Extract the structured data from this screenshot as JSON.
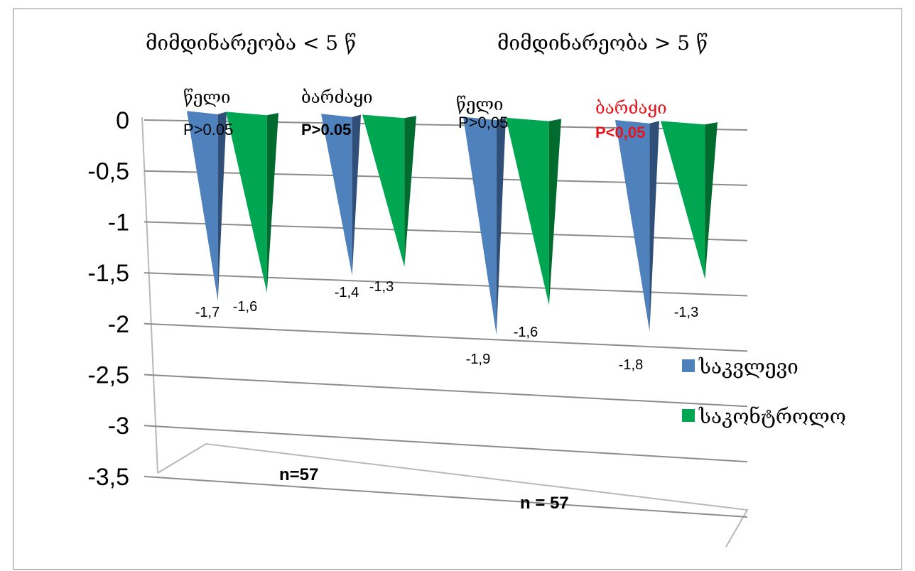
{
  "chart_data": {
    "type": "bar",
    "style": "3d-cone",
    "categories": [
      "წელი",
      "ბარძაყი",
      "წელი",
      "ბარძაყი"
    ],
    "groups": [
      "მიმდინარეობა < 5 წ",
      "მიმდინარეობა > 5 წ"
    ],
    "series": [
      {
        "name": "საკვლევი",
        "color": "#4f81bd",
        "values": [
          -1.7,
          -1.4,
          -1.9,
          -1.8
        ],
        "labels": [
          "-1,7",
          "-1,4",
          "-1,9",
          "-1,8"
        ]
      },
      {
        "name": "საკონტროლო",
        "color": "#00a651",
        "values": [
          -1.6,
          -1.3,
          -1.6,
          -1.3
        ],
        "labels": [
          "-1,6",
          "-1,3",
          "-1,6",
          "-1,3"
        ]
      }
    ],
    "p_values": [
      {
        "text": "P>0.05",
        "bold": false,
        "red": false
      },
      {
        "text": "P>0.05",
        "bold": true,
        "red": false
      },
      {
        "text": "P>0,05",
        "bold": false,
        "red": false
      },
      {
        "text": "P<0,05",
        "bold": true,
        "red": true
      }
    ],
    "category_colors": [
      "#000000",
      "#000000",
      "#000000",
      "#e8141c"
    ],
    "yticks": [
      0,
      -0.5,
      -1,
      -1.5,
      -2,
      -2.5,
      -3,
      -3.5
    ],
    "ytick_labels": [
      "0",
      "-0,5",
      "-1",
      "-1,5",
      "-2",
      "-2,5",
      "-3",
      "-3,5"
    ],
    "ylim": [
      -3.5,
      0
    ],
    "grid": true,
    "legend_position": "right",
    "n_labels": [
      "n=57",
      "n = 57"
    ],
    "title": "",
    "xlabel": "",
    "ylabel": ""
  }
}
